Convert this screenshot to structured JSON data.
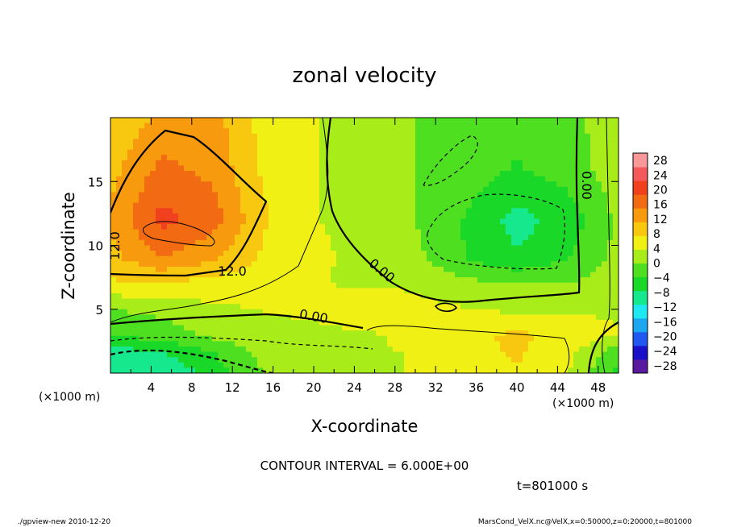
{
  "chart_data": {
    "type": "heatmap",
    "title": "zonal velocity",
    "xlabel": "X-coordinate",
    "ylabel": "Z-coordinate",
    "x_unit": "(×1000 m)",
    "y_unit": "(×1000 m)",
    "xlim": [
      0,
      50
    ],
    "ylim": [
      0,
      20
    ],
    "x_ticks": [
      4,
      8,
      12,
      16,
      20,
      24,
      28,
      32,
      36,
      40,
      44,
      48
    ],
    "y_ticks": [
      5,
      10,
      15
    ],
    "colorbar": {
      "ticks": [
        28,
        24,
        20,
        16,
        12,
        8,
        4,
        0,
        -4,
        -8,
        -12,
        -16,
        -20,
        -24,
        -28
      ],
      "range": [
        -30,
        30
      ],
      "colors": [
        "#5a1aa0",
        "#1a10c8",
        "#2058f0",
        "#1ca8f0",
        "#20e8f0",
        "#16e88e",
        "#1ad828",
        "#4ee020",
        "#a8ec1a",
        "#f0f014",
        "#f8c810",
        "#f89a0e",
        "#f26a12",
        "#f0401e",
        "#f45a5a",
        "#f89898"
      ]
    },
    "contour_labels": [
      "12.0",
      "12.0",
      "0.00",
      "0.00",
      "0.00"
    ],
    "contour_interval": "CONTOUR INTERVAL = 6.000E+00",
    "time_label": "t=801000 s",
    "field_grid_x": [
      0,
      5,
      10,
      15,
      20,
      25,
      30,
      35,
      40,
      45,
      50
    ],
    "field_grid_z": [
      20,
      16,
      12,
      9,
      7,
      5,
      3,
      1.5,
      0
    ],
    "field_values": [
      [
        8,
        12,
        13,
        6,
        4,
        2,
        0,
        -1,
        -3,
        -1,
        2
      ],
      [
        10,
        16,
        14,
        7,
        4,
        2,
        0,
        -2,
        -4,
        -2,
        2
      ],
      [
        12,
        20,
        17,
        8,
        4,
        2,
        0,
        -4,
        -9,
        -6,
        1
      ],
      [
        10,
        15,
        12,
        7,
        5,
        2,
        1,
        -4,
        -7,
        -4,
        1
      ],
      [
        7,
        7,
        6,
        5,
        4,
        3,
        3,
        1,
        0,
        0,
        2
      ],
      [
        0,
        1,
        3,
        4,
        5,
        8,
        5,
        4,
        3,
        3,
        3
      ],
      [
        -3,
        -2,
        1,
        2,
        2,
        3,
        5,
        7,
        8,
        7,
        4
      ],
      [
        -10,
        -8,
        -4,
        1,
        2,
        3,
        4,
        6,
        8,
        5,
        -3
      ],
      [
        -11,
        -11,
        -6,
        0,
        2,
        3,
        4,
        5,
        7,
        4,
        -5
      ]
    ]
  },
  "footer": {
    "left": "./gpview-new  2010-12-20",
    "right": "MarsCond_VelX.nc@VelX,x=0:50000,z=0:20000,t=801000"
  }
}
